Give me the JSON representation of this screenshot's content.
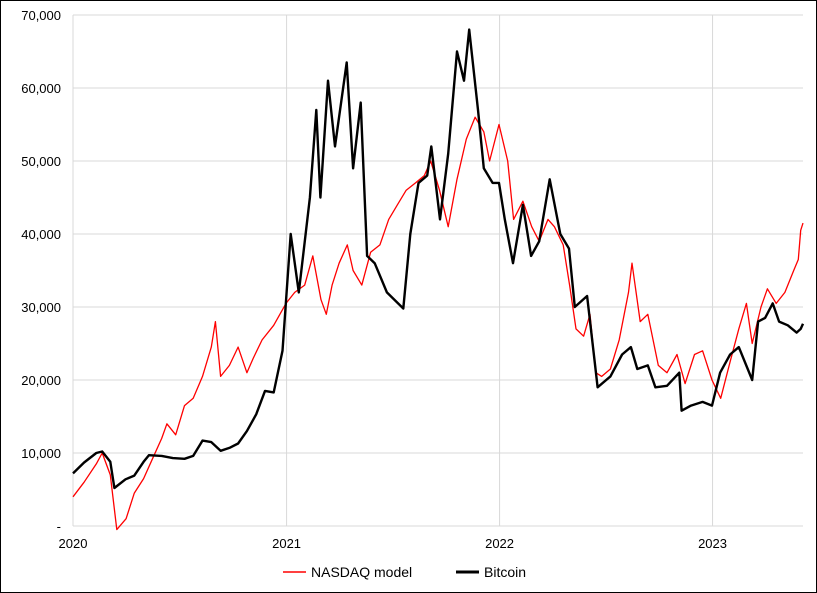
{
  "chart_data": {
    "type": "line",
    "title": "",
    "xlabel": "",
    "ylabel": "",
    "x_ticks": [
      "2020",
      "2021",
      "2022",
      "2023"
    ],
    "y_ticks": [
      "-",
      "10,000",
      "20,000",
      "30,000",
      "40,000",
      "50,000",
      "60,000",
      "70,000"
    ],
    "ylim": [
      0,
      70000
    ],
    "xlim": [
      "2020-01-01",
      "2023-06-05"
    ],
    "grid": "vertical and horizontal",
    "legend_position": "bottom",
    "series": [
      {
        "name": "NASDAQ model",
        "color": "#ff0000",
        "points": [
          [
            "2020-01-01",
            4000
          ],
          [
            "2020-01-20",
            6000
          ],
          [
            "2020-02-10",
            8500
          ],
          [
            "2020-02-20",
            10000
          ],
          [
            "2020-03-05",
            7000
          ],
          [
            "2020-03-16",
            -500
          ],
          [
            "2020-04-01",
            1000
          ],
          [
            "2020-04-15",
            4500
          ],
          [
            "2020-05-01",
            6500
          ],
          [
            "2020-05-15",
            9000
          ],
          [
            "2020-06-01",
            12000
          ],
          [
            "2020-06-10",
            14000
          ],
          [
            "2020-06-25",
            12500
          ],
          [
            "2020-07-10",
            16500
          ],
          [
            "2020-07-25",
            17500
          ],
          [
            "2020-08-10",
            20500
          ],
          [
            "2020-08-25",
            24500
          ],
          [
            "2020-09-01",
            28000
          ],
          [
            "2020-09-10",
            20500
          ],
          [
            "2020-09-25",
            22000
          ],
          [
            "2020-10-10",
            24500
          ],
          [
            "2020-10-25",
            21000
          ],
          [
            "2020-11-05",
            23000
          ],
          [
            "2020-11-20",
            25500
          ],
          [
            "2020-12-10",
            27500
          ],
          [
            "2020-12-31",
            30500
          ],
          [
            "2021-01-15",
            32000
          ],
          [
            "2021-02-01",
            33000
          ],
          [
            "2021-02-15",
            37000
          ],
          [
            "2021-03-01",
            31000
          ],
          [
            "2021-03-10",
            29000
          ],
          [
            "2021-03-20",
            33000
          ],
          [
            "2021-04-01",
            36000
          ],
          [
            "2021-04-15",
            38500
          ],
          [
            "2021-04-25",
            35000
          ],
          [
            "2021-05-10",
            33000
          ],
          [
            "2021-05-25",
            37500
          ],
          [
            "2021-06-10",
            38500
          ],
          [
            "2021-06-25",
            42000
          ],
          [
            "2021-07-10",
            44000
          ],
          [
            "2021-07-25",
            46000
          ],
          [
            "2021-08-10",
            47000
          ],
          [
            "2021-08-25",
            48000
          ],
          [
            "2021-09-05",
            50000
          ],
          [
            "2021-09-20",
            46000
          ],
          [
            "2021-10-05",
            41000
          ],
          [
            "2021-10-20",
            47500
          ],
          [
            "2021-11-05",
            53000
          ],
          [
            "2021-11-20",
            56000
          ],
          [
            "2021-12-05",
            54000
          ],
          [
            "2021-12-15",
            50000
          ],
          [
            "2021-12-31",
            55000
          ],
          [
            "2022-01-15",
            50000
          ],
          [
            "2022-01-25",
            42000
          ],
          [
            "2022-02-10",
            44500
          ],
          [
            "2022-02-25",
            41000
          ],
          [
            "2022-03-10",
            39000
          ],
          [
            "2022-03-25",
            42000
          ],
          [
            "2022-04-05",
            41000
          ],
          [
            "2022-04-20",
            38500
          ],
          [
            "2022-05-01",
            33000
          ],
          [
            "2022-05-12",
            27000
          ],
          [
            "2022-05-25",
            26000
          ],
          [
            "2022-06-05",
            29000
          ],
          [
            "2022-06-15",
            21000
          ],
          [
            "2022-06-25",
            20500
          ],
          [
            "2022-07-10",
            21500
          ],
          [
            "2022-07-25",
            25500
          ],
          [
            "2022-08-10",
            32000
          ],
          [
            "2022-08-16",
            36000
          ],
          [
            "2022-08-30",
            28000
          ],
          [
            "2022-09-12",
            29000
          ],
          [
            "2022-09-30",
            22000
          ],
          [
            "2022-10-15",
            21000
          ],
          [
            "2022-11-01",
            23500
          ],
          [
            "2022-11-15",
            19500
          ],
          [
            "2022-12-01",
            23500
          ],
          [
            "2022-12-15",
            24000
          ],
          [
            "2022-12-31",
            20000
          ],
          [
            "2023-01-15",
            17500
          ],
          [
            "2023-01-31",
            22500
          ],
          [
            "2023-02-15",
            27000
          ],
          [
            "2023-02-28",
            30500
          ],
          [
            "2023-03-10",
            25000
          ],
          [
            "2023-03-25",
            30000
          ],
          [
            "2023-04-05",
            32500
          ],
          [
            "2023-04-20",
            30500
          ],
          [
            "2023-05-05",
            32000
          ],
          [
            "2023-05-20",
            35000
          ],
          [
            "2023-05-28",
            36500
          ],
          [
            "2023-06-01",
            40500
          ],
          [
            "2023-06-05",
            41500
          ]
        ]
      },
      {
        "name": "Bitcoin",
        "color": "#000000",
        "points": [
          [
            "2020-01-01",
            7200
          ],
          [
            "2020-01-20",
            8700
          ],
          [
            "2020-02-10",
            10000
          ],
          [
            "2020-02-20",
            10200
          ],
          [
            "2020-03-05",
            8800
          ],
          [
            "2020-03-12",
            5200
          ],
          [
            "2020-03-31",
            6400
          ],
          [
            "2020-04-15",
            6900
          ],
          [
            "2020-05-01",
            8800
          ],
          [
            "2020-05-10",
            9700
          ],
          [
            "2020-06-01",
            9600
          ],
          [
            "2020-06-20",
            9300
          ],
          [
            "2020-07-10",
            9200
          ],
          [
            "2020-07-25",
            9600
          ],
          [
            "2020-08-10",
            11700
          ],
          [
            "2020-08-25",
            11500
          ],
          [
            "2020-09-10",
            10300
          ],
          [
            "2020-09-25",
            10700
          ],
          [
            "2020-10-10",
            11300
          ],
          [
            "2020-10-25",
            13000
          ],
          [
            "2020-11-10",
            15300
          ],
          [
            "2020-11-25",
            18500
          ],
          [
            "2020-12-10",
            18300
          ],
          [
            "2020-12-25",
            24000
          ],
          [
            "2021-01-08",
            40000
          ],
          [
            "2021-01-22",
            32000
          ],
          [
            "2021-02-10",
            45000
          ],
          [
            "2021-02-21",
            57000
          ],
          [
            "2021-02-28",
            45000
          ],
          [
            "2021-03-13",
            61000
          ],
          [
            "2021-03-25",
            52000
          ],
          [
            "2021-04-14",
            63500
          ],
          [
            "2021-04-25",
            49000
          ],
          [
            "2021-05-08",
            58000
          ],
          [
            "2021-05-19",
            37000
          ],
          [
            "2021-06-01",
            36000
          ],
          [
            "2021-06-22",
            32000
          ],
          [
            "2021-07-20",
            29800
          ],
          [
            "2021-08-01",
            40000
          ],
          [
            "2021-08-15",
            47000
          ],
          [
            "2021-08-30",
            48000
          ],
          [
            "2021-09-06",
            52000
          ],
          [
            "2021-09-21",
            42000
          ],
          [
            "2021-10-05",
            51000
          ],
          [
            "2021-10-20",
            65000
          ],
          [
            "2021-11-01",
            61000
          ],
          [
            "2021-11-10",
            68000
          ],
          [
            "2021-11-25",
            57000
          ],
          [
            "2021-12-05",
            49000
          ],
          [
            "2021-12-20",
            47000
          ],
          [
            "2021-12-31",
            47000
          ],
          [
            "2022-01-10",
            42000
          ],
          [
            "2022-01-24",
            36000
          ],
          [
            "2022-02-10",
            44000
          ],
          [
            "2022-02-24",
            37000
          ],
          [
            "2022-03-10",
            39000
          ],
          [
            "2022-03-28",
            47500
          ],
          [
            "2022-04-15",
            40000
          ],
          [
            "2022-04-30",
            38000
          ],
          [
            "2022-05-10",
            30000
          ],
          [
            "2022-05-31",
            31500
          ],
          [
            "2022-06-13",
            22500
          ],
          [
            "2022-06-18",
            19000
          ],
          [
            "2022-07-10",
            20500
          ],
          [
            "2022-07-30",
            23500
          ],
          [
            "2022-08-14",
            24500
          ],
          [
            "2022-08-25",
            21500
          ],
          [
            "2022-09-12",
            22000
          ],
          [
            "2022-09-25",
            19000
          ],
          [
            "2022-10-15",
            19200
          ],
          [
            "2022-11-05",
            21000
          ],
          [
            "2022-11-09",
            15800
          ],
          [
            "2022-11-25",
            16500
          ],
          [
            "2022-12-15",
            17000
          ],
          [
            "2022-12-31",
            16500
          ],
          [
            "2023-01-14",
            21000
          ],
          [
            "2023-01-31",
            23500
          ],
          [
            "2023-02-15",
            24500
          ],
          [
            "2023-03-10",
            20000
          ],
          [
            "2023-03-20",
            28000
          ],
          [
            "2023-04-01",
            28500
          ],
          [
            "2023-04-14",
            30500
          ],
          [
            "2023-04-25",
            28000
          ],
          [
            "2023-05-10",
            27500
          ],
          [
            "2023-05-25",
            26500
          ],
          [
            "2023-06-01",
            27000
          ],
          [
            "2023-06-05",
            27700
          ]
        ]
      }
    ]
  }
}
